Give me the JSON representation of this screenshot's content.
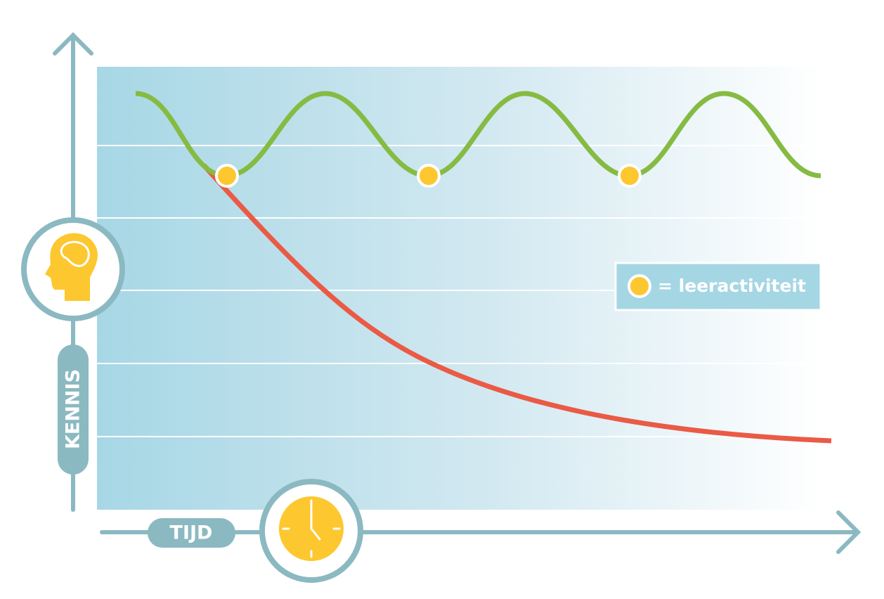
{
  "axes": {
    "y_label": "KENNIS",
    "x_label": "TIJD"
  },
  "legend": {
    "label": "= leeractiviteit"
  }
}
